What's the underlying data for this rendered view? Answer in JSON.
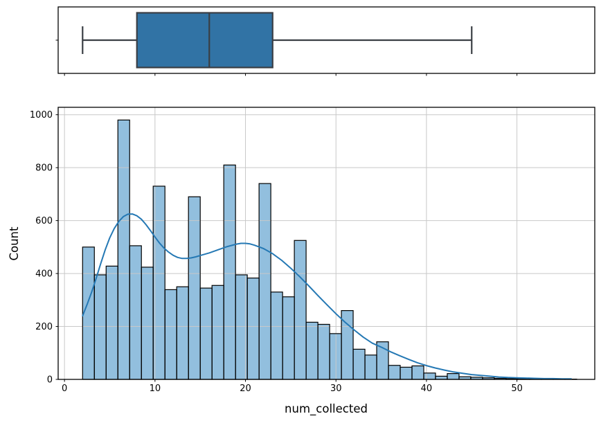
{
  "figure": {
    "background": "#ffffff"
  },
  "chart_data": [
    {
      "type": "box",
      "orientation": "horizontal",
      "stats": {
        "whisker_low": 2,
        "q1": 8,
        "median": 16,
        "q3": 23,
        "whisker_high": 45
      },
      "xlim": [
        -0.7,
        58.6
      ],
      "xticks": [
        0,
        10,
        20,
        30,
        40,
        50
      ],
      "grid": false,
      "colors": {
        "box_fill": "#3173a5",
        "box_edge": "#3a3e44",
        "spine": "#000000"
      }
    },
    {
      "type": "histogram",
      "xlabel": "num_collected",
      "ylabel": "Count",
      "bin_start": 2.0,
      "bin_width": 1.3,
      "counts": [
        500,
        395,
        428,
        980,
        505,
        424,
        730,
        339,
        350,
        690,
        345,
        355,
        810,
        395,
        383,
        740,
        330,
        312,
        525,
        216,
        208,
        173,
        260,
        114,
        92,
        142,
        53,
        46,
        51,
        24,
        12,
        22,
        10,
        8,
        6,
        4,
        3,
        2,
        2,
        1,
        1,
        1
      ],
      "kde": {
        "x": [
          2,
          2.5,
          3,
          3.5,
          4,
          4.5,
          5,
          5.5,
          6,
          6.5,
          7,
          7.5,
          8,
          8.5,
          9,
          9.5,
          10,
          10.5,
          11,
          11.5,
          12,
          12.5,
          13,
          13.5,
          14,
          14.5,
          15,
          16,
          17,
          18,
          19,
          19.5,
          20,
          20.5,
          21,
          22,
          23,
          24,
          25,
          26,
          27,
          28,
          29,
          30,
          31,
          32,
          33,
          34,
          35,
          36,
          37,
          38,
          39,
          40,
          41,
          42,
          43,
          44,
          45,
          46,
          47,
          48,
          49,
          50,
          51,
          52,
          53,
          54,
          55,
          56
        ],
        "y": [
          240,
          283,
          330,
          382,
          437,
          490,
          535,
          570,
          597,
          615,
          624,
          625,
          618,
          605,
          585,
          562,
          538,
          515,
          496,
          481,
          469,
          461,
          457,
          457,
          459,
          463,
          468,
          478,
          490,
          502,
          511,
          514,
          514,
          512,
          507,
          494,
          475,
          450,
          420,
          388,
          353,
          317,
          282,
          248,
          216,
          187,
          160,
          137,
          122,
          105,
          90,
          76,
          63,
          52,
          43,
          35,
          28,
          23,
          18,
          15,
          12,
          9,
          7,
          6,
          5,
          4,
          3,
          3,
          2,
          2
        ]
      },
      "xlim": [
        -0.7,
        58.6
      ],
      "ylim": [
        0,
        1028
      ],
      "xticks": [
        0,
        10,
        20,
        30,
        40,
        50
      ],
      "yticks": [
        0,
        200,
        400,
        600,
        800,
        1000
      ],
      "grid": true,
      "colors": {
        "bar_fill": "#92bfde",
        "bar_edge": "#000000",
        "kde_line": "#2478b4",
        "grid": "#c8c8c8",
        "spine": "#000000"
      }
    }
  ]
}
